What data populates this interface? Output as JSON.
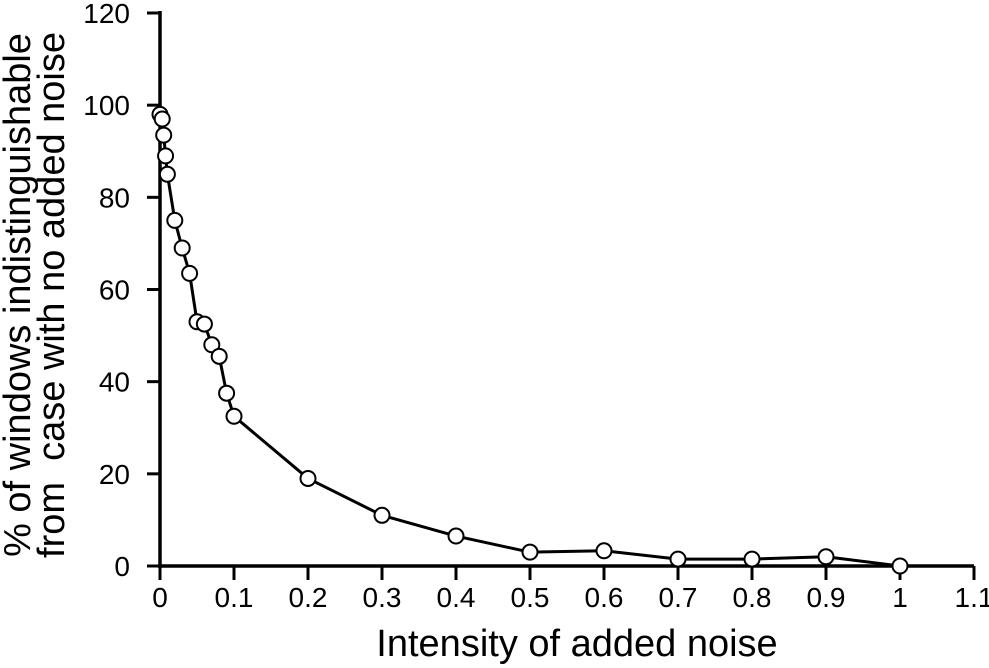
{
  "chart_data": {
    "type": "line",
    "title": "",
    "xlabel": "Intensity of added noise",
    "ylabel_line1": "% of windows indistinguishable",
    "ylabel_line2": "from  case with no added noise",
    "x": [
      0,
      0.003,
      0.005,
      0.0075,
      0.01,
      0.02,
      0.03,
      0.04,
      0.05,
      0.06,
      0.07,
      0.08,
      0.09,
      0.1,
      0.2,
      0.3,
      0.4,
      0.5,
      0.6,
      0.7,
      0.8,
      0.9,
      1
    ],
    "y": [
      98,
      97,
      93.5,
      89,
      85,
      75,
      69,
      63.5,
      53,
      52.5,
      48,
      45.5,
      37.5,
      32.5,
      19,
      11,
      6.5,
      3,
      3.3,
      1.5,
      1.5,
      2,
      0
    ],
    "xlim": [
      0,
      1.1
    ],
    "ylim": [
      0,
      120
    ],
    "xticks": [
      0,
      0.1,
      0.2,
      0.3,
      0.4,
      0.5,
      0.6,
      0.7,
      0.8,
      0.9,
      1,
      1.1
    ],
    "xtick_labels": [
      "0",
      "0.1",
      "0.2",
      "0.3",
      "0.4",
      "0.5",
      "0.6",
      "0.7",
      "0.8",
      "0.9",
      "1",
      "1.1"
    ],
    "yticks": [
      0,
      20,
      40,
      60,
      80,
      100,
      120
    ],
    "ytick_labels": [
      "0",
      "20",
      "40",
      "60",
      "80",
      "100",
      "120"
    ],
    "grid": false,
    "legend": "none",
    "line_color": "#000000",
    "axis_color": "#000000",
    "marker": "circle-open",
    "marker_fill": "#ffffff",
    "background": "#ffffff"
  }
}
